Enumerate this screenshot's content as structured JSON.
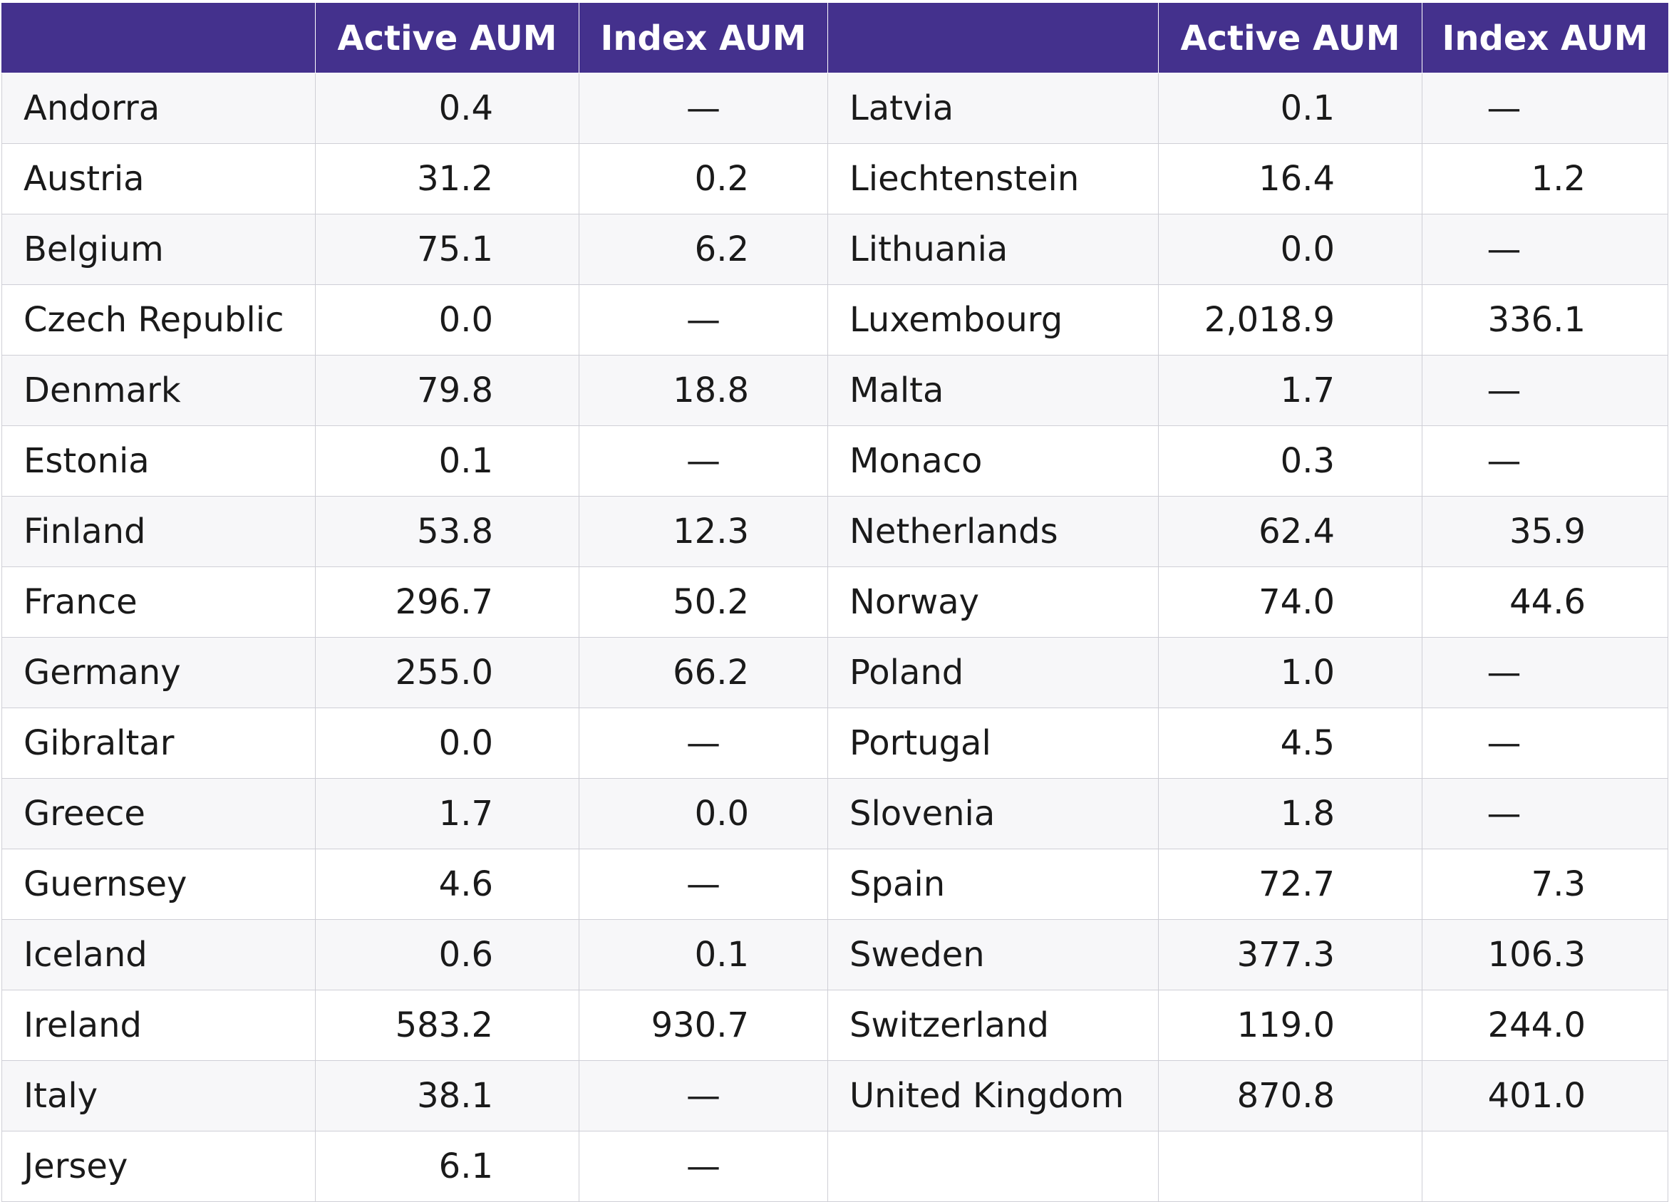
{
  "headers": {
    "left_country": "",
    "left_active": "Active AUM",
    "left_index": "Index AUM",
    "right_country": "",
    "right_active": "Active AUM",
    "right_index": "Index AUM"
  },
  "rows": [
    {
      "left_country": "Andorra",
      "left_active": "0.4",
      "left_index": "—",
      "right_country": "Latvia",
      "right_active": "0.1",
      "right_index": "—"
    },
    {
      "left_country": "Austria",
      "left_active": "31.2",
      "left_index": "0.2",
      "right_country": "Liechtenstein",
      "right_active": "16.4",
      "right_index": "1.2"
    },
    {
      "left_country": "Belgium",
      "left_active": "75.1",
      "left_index": "6.2",
      "right_country": "Lithuania",
      "right_active": "0.0",
      "right_index": "—"
    },
    {
      "left_country": "Czech Republic",
      "left_active": "0.0",
      "left_index": "—",
      "right_country": "Luxembourg",
      "right_active": "2,018.9",
      "right_index": "336.1"
    },
    {
      "left_country": "Denmark",
      "left_active": "79.8",
      "left_index": "18.8",
      "right_country": "Malta",
      "right_active": "1.7",
      "right_index": "—"
    },
    {
      "left_country": "Estonia",
      "left_active": "0.1",
      "left_index": "—",
      "right_country": "Monaco",
      "right_active": "0.3",
      "right_index": "—"
    },
    {
      "left_country": "Finland",
      "left_active": "53.8",
      "left_index": "12.3",
      "right_country": "Netherlands",
      "right_active": "62.4",
      "right_index": "35.9"
    },
    {
      "left_country": "France",
      "left_active": "296.7",
      "left_index": "50.2",
      "right_country": "Norway",
      "right_active": "74.0",
      "right_index": "44.6"
    },
    {
      "left_country": "Germany",
      "left_active": "255.0",
      "left_index": "66.2",
      "right_country": "Poland",
      "right_active": "1.0",
      "right_index": "—"
    },
    {
      "left_country": "Gibraltar",
      "left_active": "0.0",
      "left_index": "—",
      "right_country": "Portugal",
      "right_active": "4.5",
      "right_index": "—"
    },
    {
      "left_country": "Greece",
      "left_active": "1.7",
      "left_index": "0.0",
      "right_country": "Slovenia",
      "right_active": "1.8",
      "right_index": "—"
    },
    {
      "left_country": "Guernsey",
      "left_active": "4.6",
      "left_index": "—",
      "right_country": "Spain",
      "right_active": "72.7",
      "right_index": "7.3"
    },
    {
      "left_country": "Iceland",
      "left_active": "0.6",
      "left_index": "0.1",
      "right_country": "Sweden",
      "right_active": "377.3",
      "right_index": "106.3"
    },
    {
      "left_country": "Ireland",
      "left_active": "583.2",
      "left_index": "930.7",
      "right_country": "Switzerland",
      "right_active": "119.0",
      "right_index": "244.0"
    },
    {
      "left_country": "Italy",
      "left_active": "38.1",
      "left_index": "—",
      "right_country": "United Kingdom",
      "right_active": "870.8",
      "right_index": "401.0"
    },
    {
      "left_country": "Jersey",
      "left_active": "6.1",
      "left_index": "—",
      "right_country": "",
      "right_active": "",
      "right_index": ""
    }
  ],
  "colors": {
    "header_bg": "#44318d",
    "header_text": "#ffffff",
    "row_alt_bg": "#f7f7f9",
    "grid": "#cfcfd6"
  }
}
